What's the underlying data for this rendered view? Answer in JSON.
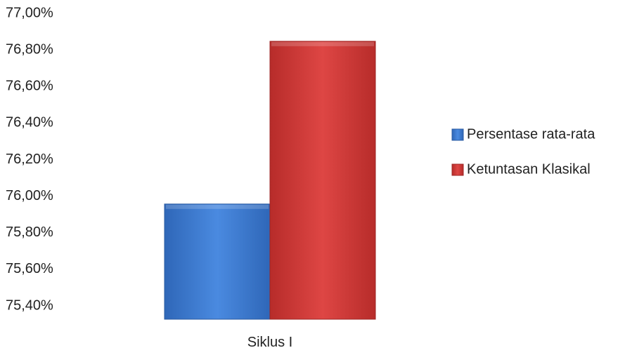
{
  "chart_data": {
    "type": "bar",
    "categories": [
      "Siklus I"
    ],
    "series": [
      {
        "name": "Persentase rata-rata",
        "values": [
          76.03
        ],
        "color": "#3f7fd6"
      },
      {
        "name": "Ketuntasan Klasikal",
        "values": [
          76.92
        ],
        "color": "#d83c3a"
      }
    ],
    "y_ticks": [
      "75,40%",
      "75,60%",
      "75,80%",
      "76,00%",
      "76,20%",
      "76,40%",
      "76,60%",
      "76,80%",
      "77,00%"
    ],
    "ylim": [
      75.4,
      77.0
    ],
    "grid": false,
    "legend_position": "right"
  }
}
